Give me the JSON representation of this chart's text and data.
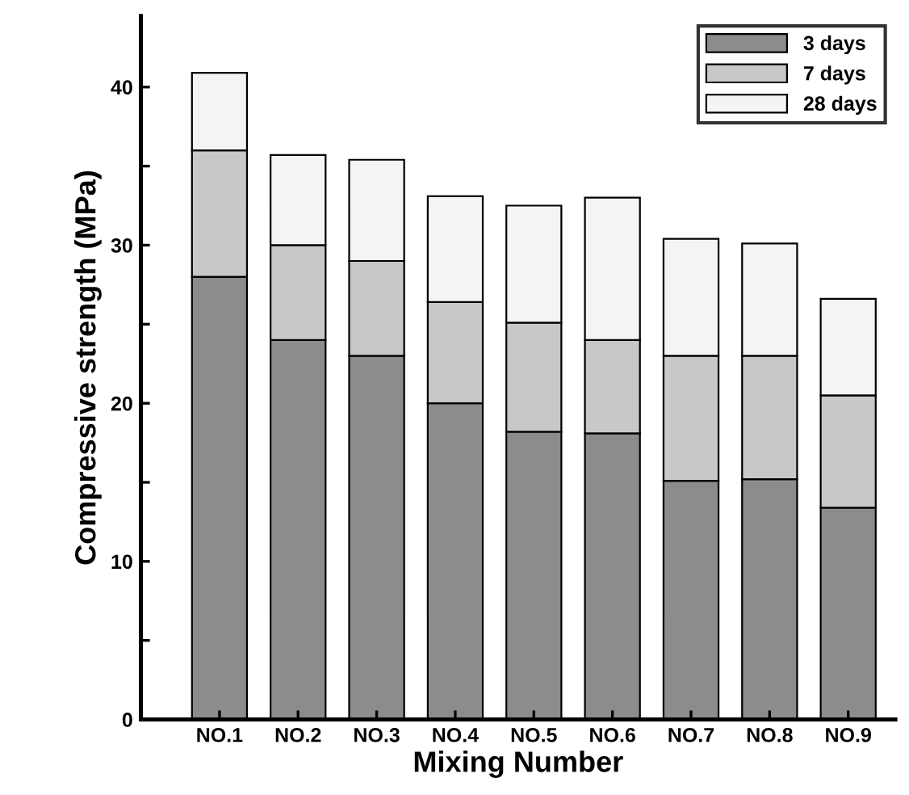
{
  "chart_data": {
    "type": "bar",
    "stacked": true,
    "xlabel": "Mixing Number",
    "ylabel": "Compressive strength (MPa)",
    "categories": [
      "NO.1",
      "NO.2",
      "NO.3",
      "NO.4",
      "NO.5",
      "NO.6",
      "NO.7",
      "NO.8",
      "NO.9"
    ],
    "series": [
      {
        "name": "3 days",
        "color": "#8c8c8c",
        "values": [
          28,
          24,
          23,
          20,
          18.2,
          18.1,
          15.1,
          15.2,
          13.4
        ]
      },
      {
        "name": "7 days",
        "color": "#c8c8c8",
        "values": [
          8,
          6,
          6,
          6.4,
          6.9,
          5.9,
          7.9,
          7.8,
          7.1
        ]
      },
      {
        "name": "28 days",
        "color": "#f4f4f4",
        "values": [
          4.9,
          5.7,
          6.4,
          6.7,
          7.4,
          9.0,
          7.4,
          7.1,
          6.1
        ]
      }
    ],
    "ylim": [
      0,
      44.5
    ],
    "yticks": [
      0,
      {
        "value": 5,
        "label": null
      },
      10,
      {
        "value": 15,
        "label": null
      },
      20,
      {
        "value": 25,
        "label": null
      },
      30,
      {
        "value": 35,
        "label": null
      },
      40
    ],
    "grid": false,
    "legend": "top right"
  }
}
